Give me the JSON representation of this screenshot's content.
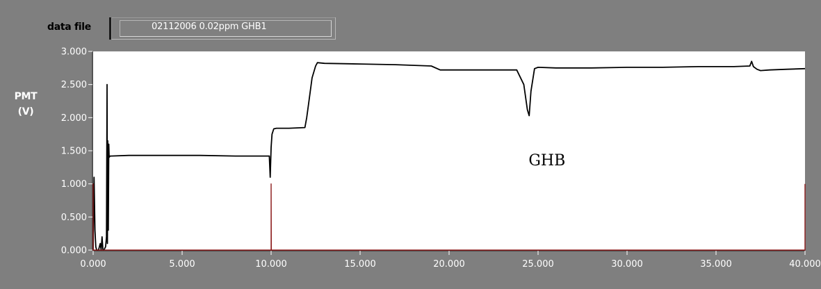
{
  "data_file": {
    "label": "data file",
    "value": "02112006 0.02ppm GHB1"
  },
  "chart_data": {
    "type": "line",
    "ylabel_line1": "PMT",
    "ylabel_line2": "(V)",
    "xlim": [
      0,
      40
    ],
    "ylim": [
      0,
      3
    ],
    "x_ticks": [
      "0.000",
      "5.000",
      "10.000",
      "15.000",
      "20.000",
      "25.000",
      "30.000",
      "35.000",
      "40.000"
    ],
    "y_ticks": [
      "0.000",
      "0.500",
      "1.000",
      "1.500",
      "2.000",
      "2.500",
      "3.000"
    ],
    "annotation": {
      "text": "GHB",
      "x": 25.5,
      "y": 1.28
    },
    "series": [
      {
        "color": "#000000",
        "x": [
          0.0,
          0.05,
          0.1,
          0.15,
          0.2,
          0.3,
          0.4,
          0.45,
          0.5,
          0.55,
          0.6,
          0.7,
          0.75,
          0.78,
          0.8,
          0.82,
          0.85,
          0.88,
          0.9,
          0.95,
          1.0,
          2.0,
          4.0,
          6.0,
          8.0,
          9.9,
          9.95,
          10.0,
          10.05,
          10.15,
          10.3,
          11.0,
          11.9,
          12.0,
          12.1,
          12.3,
          12.5,
          12.6,
          13.0,
          15.0,
          17.0,
          19.0,
          19.5,
          20.0,
          22.0,
          23.8,
          24.2,
          24.4,
          24.5,
          24.6,
          24.8,
          25.0,
          26.0,
          28.0,
          30.0,
          32.0,
          34.0,
          36.0,
          36.9,
          37.0,
          37.1,
          37.3,
          37.5,
          38.0,
          39.0,
          40.0
        ],
        "y": [
          0.0,
          1.1,
          0.3,
          0.05,
          0.0,
          0.0,
          0.1,
          0.0,
          0.2,
          0.0,
          0.0,
          0.05,
          0.2,
          2.5,
          0.1,
          1.65,
          0.3,
          1.6,
          1.4,
          1.42,
          1.42,
          1.43,
          1.43,
          1.43,
          1.42,
          1.42,
          1.1,
          1.55,
          1.75,
          1.83,
          1.84,
          1.84,
          1.85,
          2.0,
          2.2,
          2.6,
          2.78,
          2.83,
          2.82,
          2.81,
          2.8,
          2.78,
          2.72,
          2.72,
          2.72,
          2.72,
          2.5,
          2.12,
          2.03,
          2.4,
          2.74,
          2.76,
          2.75,
          2.75,
          2.76,
          2.76,
          2.77,
          2.77,
          2.78,
          2.85,
          2.77,
          2.73,
          2.71,
          2.72,
          2.73,
          2.74
        ]
      },
      {
        "color": "#8b1a1a",
        "x": [
          0.0,
          0.0,
          0.0,
          0.05,
          9.99,
          10.0,
          10.0,
          10.01,
          39.97,
          40.0,
          40.0
        ],
        "y": [
          0.0,
          1.0,
          0.0,
          0.0,
          0.0,
          0.0,
          1.0,
          0.0,
          0.0,
          0.0,
          1.0
        ]
      }
    ]
  }
}
